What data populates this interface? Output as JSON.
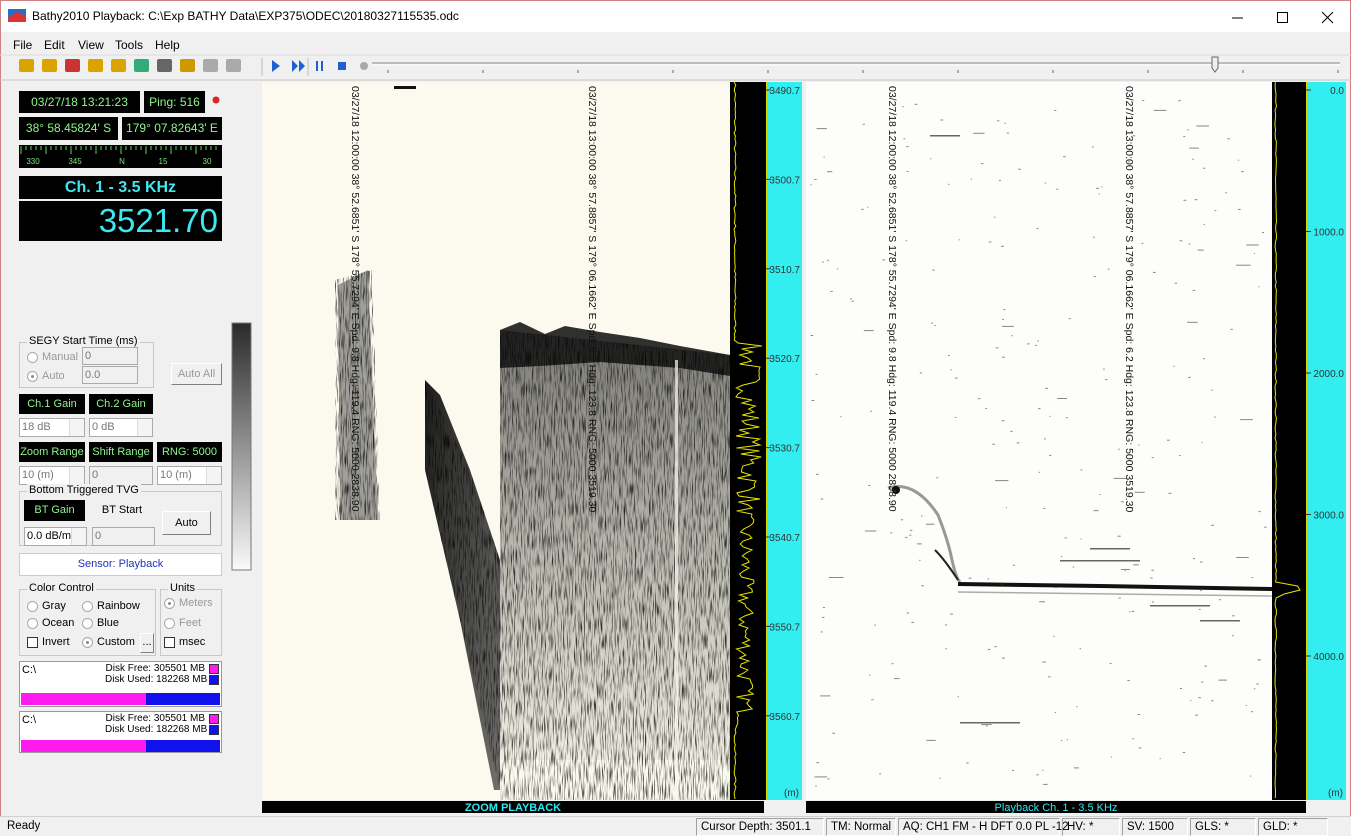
{
  "window": {
    "title": "Bathy2010 Playback: C:\\Exp BATHY Data\\EXP375\\ODEC\\20180327115535.odc"
  },
  "menu": [
    "File",
    "Edit",
    "View",
    "Tools",
    "Help"
  ],
  "left_panel": {
    "datetime": "03/27/18 13:21:23",
    "ping": "Ping: 516",
    "latitude": "38° 58.45824' S",
    "longitude": "179° 07.82643' E",
    "compass": [
      "330",
      "345",
      "N",
      "15",
      "30"
    ],
    "channel": "Ch. 1 - 3.5 KHz",
    "depth": "3521.70",
    "segy": {
      "title": "SEGY Start Time (ms)",
      "manual": "Manual",
      "manual_value": "0",
      "auto": "Auto",
      "auto_value": "0.0",
      "button": "Auto All"
    },
    "gain": {
      "ch1": "Ch.1 Gain",
      "ch2": "Ch.2 Gain",
      "ch1_value": "18 dB",
      "ch2_value": "0 dB"
    },
    "range": {
      "zoom": "Zoom Range",
      "shift": "Shift Range",
      "rng": "RNG: 5000",
      "zoom_value": "10 (m)",
      "shift_value": "0",
      "rng_value": "10 (m)"
    },
    "tvg": {
      "title": "Bottom Triggered TVG",
      "bt_gain": "BT Gain",
      "bt_start": "BT Start",
      "auto": "Auto",
      "gain_value": "0.0 dB/m",
      "start_value": "0"
    },
    "sensor": "Sensor: Playback",
    "color_control": {
      "title": "Color Control",
      "options": [
        "Gray",
        "Rainbow",
        "Ocean",
        "Blue"
      ],
      "invert": "Invert",
      "custom": "Custom",
      "more": "..."
    },
    "units": {
      "title": "Units",
      "options": [
        "Meters",
        "Feet"
      ],
      "msec": "msec"
    },
    "disks": [
      {
        "drive": "C:\\",
        "free": "Disk Free: 305501 MB",
        "used": "Disk Used: 182268 MB"
      },
      {
        "drive": "C:\\",
        "free": "Disk Free: 305501 MB",
        "used": "Disk Used: 182268 MB"
      }
    ]
  },
  "zoom_view": {
    "annotations": [
      "03/27/18 12:00:00 38° 52.6851' S 178° 55.7294' E Spd: 9.8 Hdg: 119.4 RNG: 5000 2838.90",
      "03/27/18 13:00:00 38° 57.8857' S 179° 06.1662' E Spd: 6.2 Hdg: 123.8 RNG: 5000 3519.30"
    ],
    "scale": [
      "3490.7",
      "3500.7",
      "3510.7",
      "3520.7",
      "3530.7",
      "3540.7",
      "3550.7",
      "3560.7"
    ],
    "unit": "(m)",
    "caption": "ZOOM PLAYBACK"
  },
  "main_view": {
    "annotations": [
      "03/27/18 12:00:00 38° 52.6851' S 178° 55.7294' E Spd: 9.8 Hdg: 119.4 RNG: 5000 2838.90",
      "03/27/18 13:00:00 38° 57.8857' S 179° 06.1662' E Spd: 6.2 Hdg: 123.8 RNG: 5000 3519.30"
    ],
    "scale": [
      "0.0",
      "1000.0",
      "2000.0",
      "3000.0",
      "4000.0"
    ],
    "unit": "(m)",
    "caption": "Playback Ch. 1 - 3.5 KHz"
  },
  "status_bar": {
    "message": "Ready",
    "fields": [
      "Cursor Depth: 3501.1",
      "TM: Normal",
      "AQ: CH1 FM - H DFT 0.0 PL -12",
      "HV: *",
      "SV: 1500",
      "GLS: *",
      "GLD: *"
    ]
  }
}
